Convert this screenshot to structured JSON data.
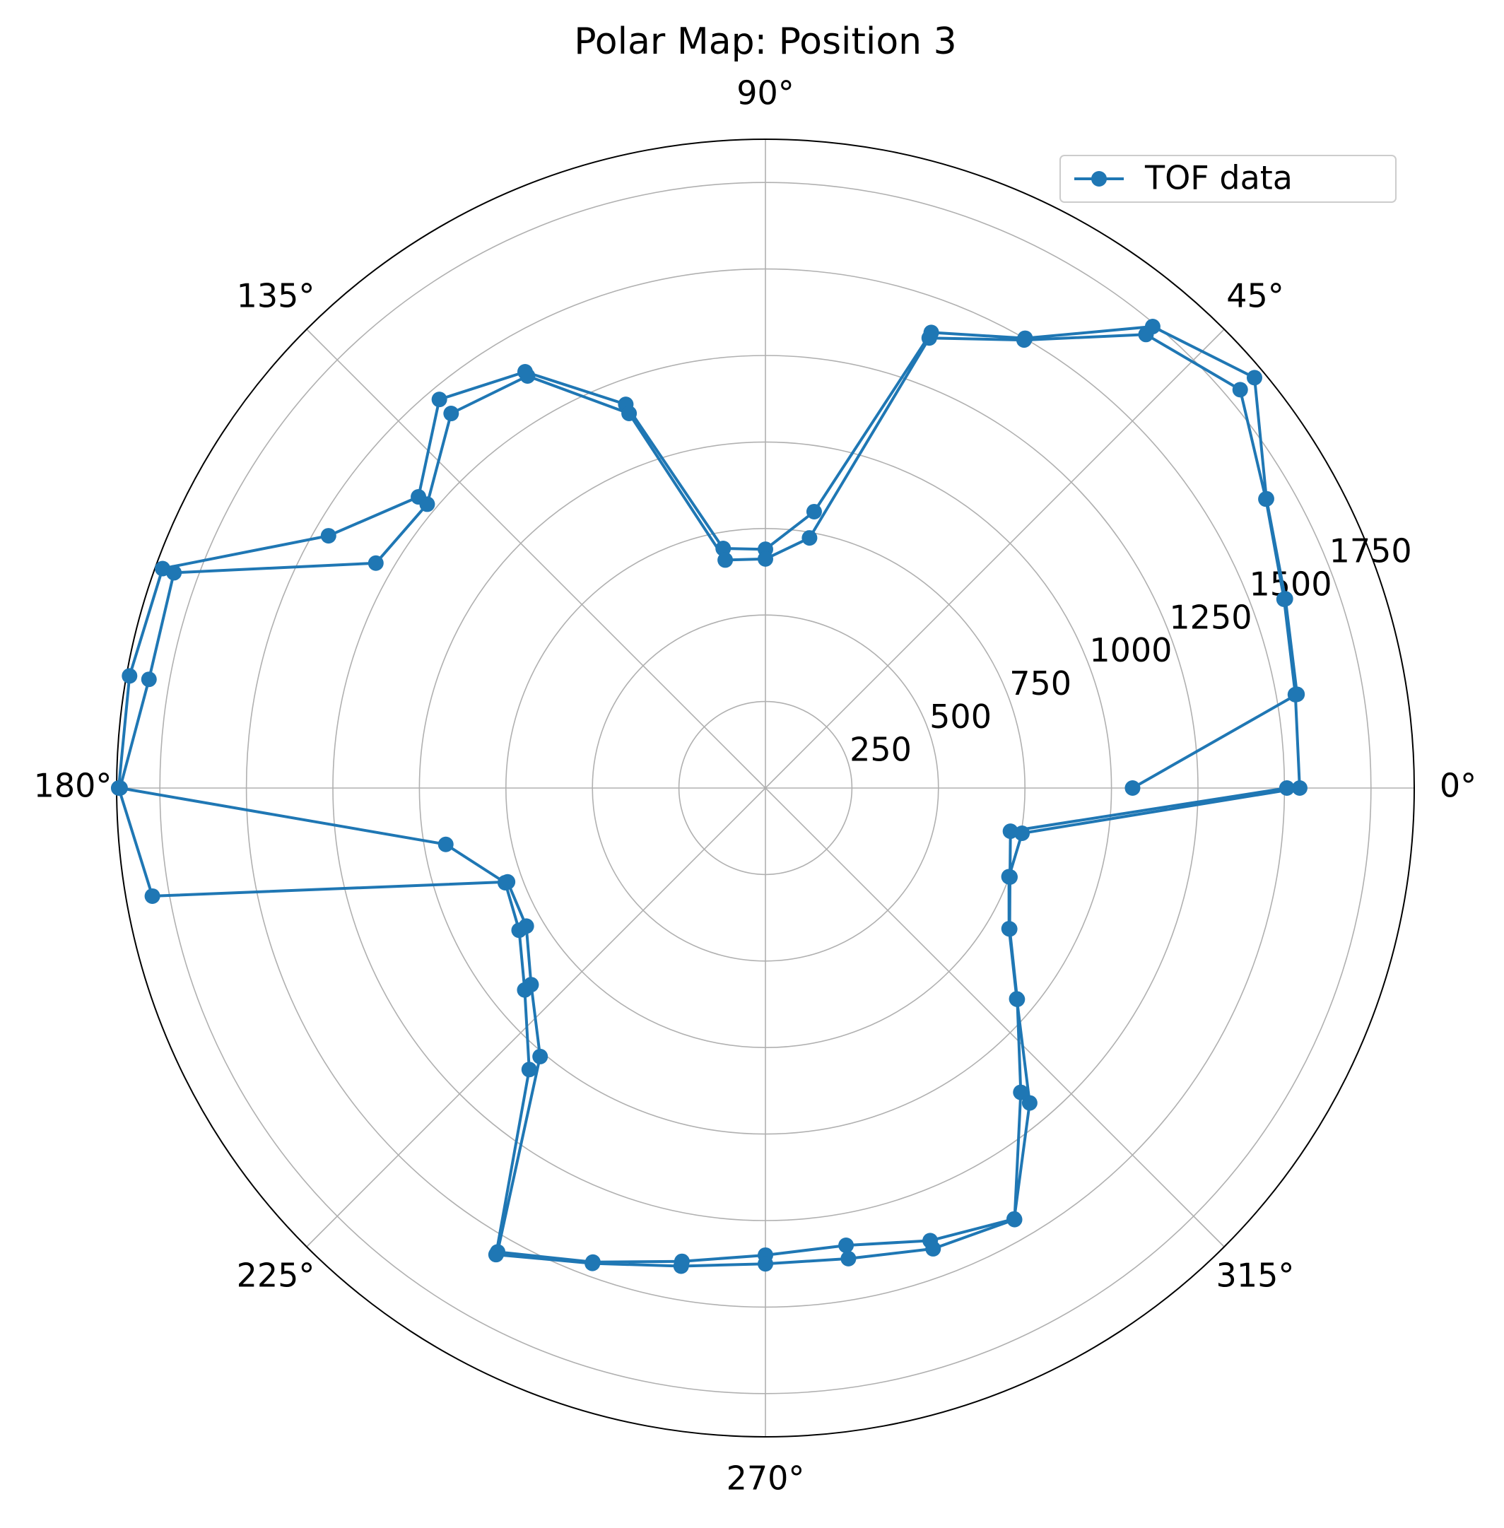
{
  "chart_data": {
    "type": "polar",
    "title": "Polar Map: Position 3",
    "x": [
      0,
      10,
      20,
      30,
      40,
      50,
      60,
      70,
      80,
      90,
      100,
      110,
      120,
      130,
      140,
      150,
      160,
      170,
      180,
      190,
      200,
      210,
      220,
      230,
      240,
      250,
      260,
      270,
      280,
      290,
      300,
      310,
      320,
      330,
      340,
      350,
      0,
      10,
      20,
      30,
      40,
      50,
      60,
      70,
      80,
      90,
      100,
      110,
      120,
      130,
      140,
      150,
      160,
      170,
      180,
      190,
      200,
      210,
      220,
      230,
      240,
      250,
      260,
      270,
      280,
      290,
      300,
      310,
      320,
      330,
      340,
      350,
      0
    ],
    "series": [
      {
        "name": "TOF data",
        "color": "#1f77b4",
        "values": [
          1061,
          1560,
          1599,
          1672,
          1845,
          1741,
          1501,
          1401,
          811,
          690,
          703,
          1180,
          1389,
          1466,
          1309,
          1458,
          1854,
          1866,
          1869,
          1799,
          793,
          798,
          884,
          1013,
          1548,
          1458,
          1389,
          1350,
          1342,
          1392,
          1438,
          1188,
          948,
          813,
          749,
          753,
          1544,
          1555,
          1595,
          1670,
          1791,
          1711,
          1495,
          1384,
          734,
          662,
          669,
          1152,
          1375,
          1413,
          1276,
          1300,
          1819,
          1809,
          1865,
          938,
          800,
          822,
          908,
          1062,
          1557,
          1462,
          1403,
          1375,
          1381,
          1417,
          1440,
          1148,
          950,
          815,
          752,
          719,
          1507
        ]
      }
    ],
    "ylim": [
      0,
      1875
    ],
    "yticks": [
      250,
      500,
      750,
      1000,
      1250,
      1500,
      1750
    ],
    "xticks": [
      {
        "value": 0,
        "label": "0°"
      },
      {
        "value": 45,
        "label": "45°"
      },
      {
        "value": 90,
        "label": "90°"
      },
      {
        "value": 135,
        "label": "135°"
      },
      {
        "value": 180,
        "label": "180°"
      },
      {
        "value": 225,
        "label": "225°"
      },
      {
        "value": 270,
        "label": "270°"
      },
      {
        "value": 315,
        "label": "315°"
      }
    ],
    "grid": true,
    "legend": "upper right"
  }
}
